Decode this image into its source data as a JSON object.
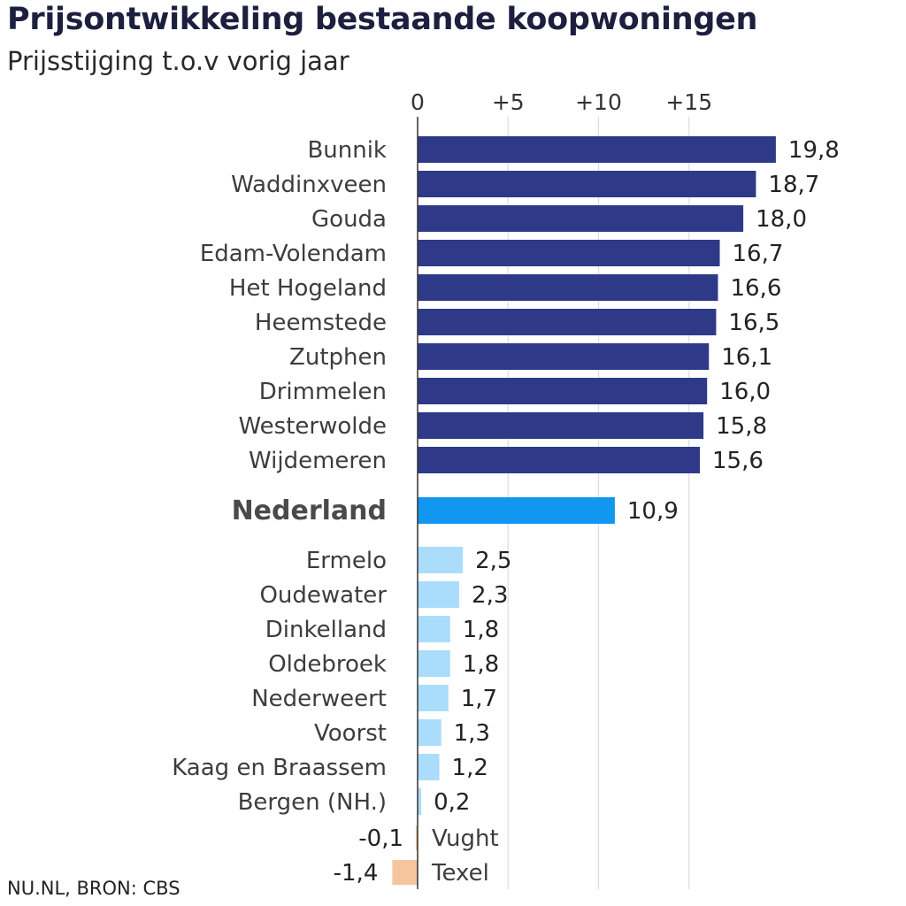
{
  "title": "Prijsontwikkeling bestaande koopwoningen",
  "subtitle": "Prijsstijging t.o.v vorig jaar",
  "source": "NU.NL, BRON: CBS",
  "colors": {
    "top": "#2e3a87",
    "national": "#1197f0",
    "low": "#aadcfc",
    "negative": "#f5c59e",
    "grid": "#dddddd",
    "axis": "#333333"
  },
  "chart_data": {
    "type": "bar",
    "orientation": "horizontal",
    "title": "Prijsontwikkeling bestaande koopwoningen",
    "subtitle": "Prijsstijging t.o.v vorig jaar",
    "xlim": [
      0,
      19.8
    ],
    "x_ticks": [
      "0",
      "+5",
      "+10",
      "+15"
    ],
    "tick_values": [
      0,
      5,
      10,
      15
    ],
    "grid": true,
    "groups": [
      {
        "name": "top",
        "items": [
          {
            "label": "Bunnik",
            "value": 19.8,
            "display": "19,8"
          },
          {
            "label": "Waddinxveen",
            "value": 18.7,
            "display": "18,7"
          },
          {
            "label": "Gouda",
            "value": 18.0,
            "display": "18,0"
          },
          {
            "label": "Edam-Volendam",
            "value": 16.7,
            "display": "16,7"
          },
          {
            "label": "Het Hogeland",
            "value": 16.6,
            "display": "16,6"
          },
          {
            "label": "Heemstede",
            "value": 16.5,
            "display": "16,5"
          },
          {
            "label": "Zutphen",
            "value": 16.1,
            "display": "16,1"
          },
          {
            "label": "Drimmelen",
            "value": 16.0,
            "display": "16,0"
          },
          {
            "label": "Westerwolde",
            "value": 15.8,
            "display": "15,8"
          },
          {
            "label": "Wijdemeren",
            "value": 15.6,
            "display": "15,6"
          }
        ]
      },
      {
        "name": "national",
        "items": [
          {
            "label": "Nederland",
            "value": 10.9,
            "display": "10,9"
          }
        ]
      },
      {
        "name": "low",
        "items": [
          {
            "label": "Ermelo",
            "value": 2.5,
            "display": "2,5"
          },
          {
            "label": "Oudewater",
            "value": 2.3,
            "display": "2,3"
          },
          {
            "label": "Dinkelland",
            "value": 1.8,
            "display": "1,8"
          },
          {
            "label": "Oldebroek",
            "value": 1.8,
            "display": "1,8"
          },
          {
            "label": "Nederweert",
            "value": 1.7,
            "display": "1,7"
          },
          {
            "label": "Voorst",
            "value": 1.3,
            "display": "1,3"
          },
          {
            "label": "Kaag en Braassem",
            "value": 1.2,
            "display": "1,2"
          },
          {
            "label": "Bergen (NH.)",
            "value": 0.2,
            "display": "0,2"
          }
        ]
      },
      {
        "name": "negative",
        "items": [
          {
            "label": "Vught",
            "value": -0.1,
            "display": "-0,1"
          },
          {
            "label": "Texel",
            "value": -1.4,
            "display": "-1,4"
          }
        ]
      }
    ]
  }
}
